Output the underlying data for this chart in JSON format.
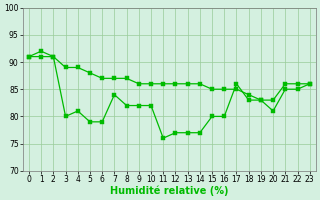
{
  "x": [
    0,
    1,
    2,
    3,
    4,
    5,
    6,
    7,
    8,
    9,
    10,
    11,
    12,
    13,
    14,
    15,
    16,
    17,
    18,
    19,
    20,
    21,
    22,
    23
  ],
  "series1": [
    91,
    91,
    91,
    89,
    89,
    88,
    87,
    87,
    87,
    86,
    86,
    86,
    86,
    86,
    86,
    85,
    85,
    85,
    84,
    83,
    83,
    86,
    86,
    86
  ],
  "series2": [
    91,
    92,
    91,
    80,
    81,
    79,
    79,
    84,
    82,
    82,
    82,
    76,
    77,
    77,
    77,
    80,
    80,
    86,
    83,
    83,
    81,
    85,
    85,
    86
  ],
  "line_color": "#00bb00",
  "bg_color": "#d4f0e0",
  "grid_color": "#99cc99",
  "xlabel": "Humidité relative (%)",
  "ylim": [
    70,
    100
  ],
  "xlim_min": -0.5,
  "xlim_max": 23.5,
  "yticks": [
    70,
    75,
    80,
    85,
    90,
    95,
    100
  ],
  "xticks": [
    0,
    1,
    2,
    3,
    4,
    5,
    6,
    7,
    8,
    9,
    10,
    11,
    12,
    13,
    14,
    15,
    16,
    17,
    18,
    19,
    20,
    21,
    22,
    23
  ],
  "tick_fontsize": 5.5,
  "xlabel_fontsize": 7.0,
  "marker_size": 2.5,
  "line_width": 0.9
}
